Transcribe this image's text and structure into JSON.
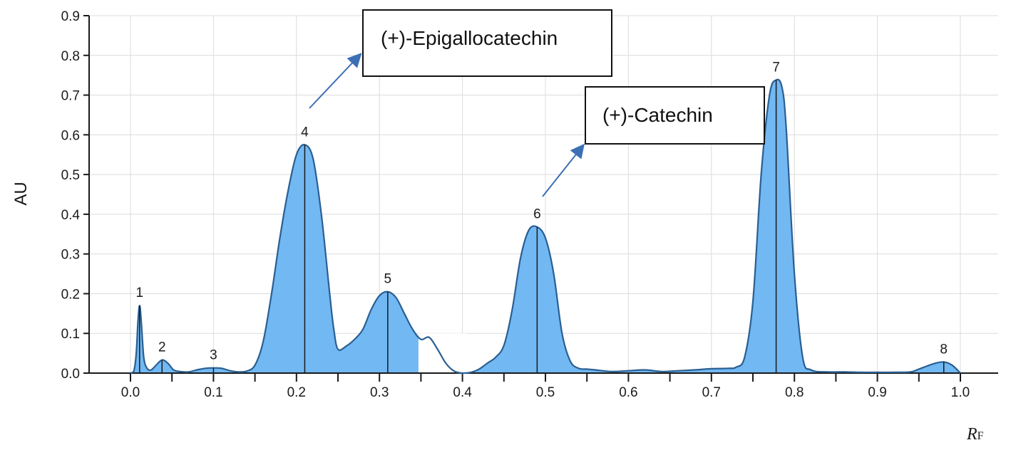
{
  "chart_data": {
    "type": "area",
    "xlabel": "RF",
    "xlabel_main": "R",
    "xlabel_sub": "F",
    "ylabel": "AU",
    "xlim": [
      -0.05,
      1.05
    ],
    "ylim": [
      0,
      0.9
    ],
    "x_ticks": [
      "0.0",
      "0.1",
      "0.2",
      "0.3",
      "0.4",
      "0.5",
      "0.6",
      "0.7",
      "0.8",
      "0.9",
      "1.0"
    ],
    "y_ticks": [
      "0.0",
      "0.1",
      "0.2",
      "0.3",
      "0.4",
      "0.5",
      "0.6",
      "0.7",
      "0.8",
      "0.9"
    ],
    "grid": true,
    "colors": {
      "fill": "#6ab4f2",
      "line": "#2a5f92",
      "arrow": "#3d6fb5"
    },
    "peaks": [
      {
        "label": "1",
        "x": 0.011,
        "y": 0.17
      },
      {
        "label": "2",
        "x": 0.038,
        "y": 0.033
      },
      {
        "label": "3",
        "x": 0.1,
        "y": 0.013
      },
      {
        "label": "4",
        "x": 0.21,
        "y": 0.575
      },
      {
        "label": "5",
        "x": 0.31,
        "y": 0.205
      },
      {
        "label": "6",
        "x": 0.49,
        "y": 0.368
      },
      {
        "label": "7",
        "x": 0.778,
        "y": 0.738
      },
      {
        "label": "8",
        "x": 0.98,
        "y": 0.028
      }
    ],
    "annotations": [
      {
        "text": "(+)-Epigallocatechin",
        "peak": "4"
      },
      {
        "text": "(+)-Catechin",
        "peak": "6"
      }
    ],
    "curve": [
      [
        0.0,
        0.0
      ],
      [
        0.004,
        0.005
      ],
      [
        0.007,
        0.05
      ],
      [
        0.009,
        0.13
      ],
      [
        0.011,
        0.17
      ],
      [
        0.013,
        0.13
      ],
      [
        0.016,
        0.04
      ],
      [
        0.02,
        0.012
      ],
      [
        0.025,
        0.008
      ],
      [
        0.03,
        0.018
      ],
      [
        0.038,
        0.033
      ],
      [
        0.045,
        0.025
      ],
      [
        0.052,
        0.008
      ],
      [
        0.06,
        0.004
      ],
      [
        0.07,
        0.003
      ],
      [
        0.08,
        0.008
      ],
      [
        0.09,
        0.012
      ],
      [
        0.1,
        0.013
      ],
      [
        0.11,
        0.012
      ],
      [
        0.12,
        0.006
      ],
      [
        0.13,
        0.003
      ],
      [
        0.14,
        0.005
      ],
      [
        0.15,
        0.02
      ],
      [
        0.16,
        0.08
      ],
      [
        0.17,
        0.2
      ],
      [
        0.18,
        0.34
      ],
      [
        0.19,
        0.46
      ],
      [
        0.2,
        0.55
      ],
      [
        0.21,
        0.575
      ],
      [
        0.22,
        0.54
      ],
      [
        0.23,
        0.4
      ],
      [
        0.24,
        0.2
      ],
      [
        0.245,
        0.11
      ],
      [
        0.25,
        0.06
      ],
      [
        0.26,
        0.068
      ],
      [
        0.27,
        0.085
      ],
      [
        0.28,
        0.11
      ],
      [
        0.29,
        0.16
      ],
      [
        0.3,
        0.195
      ],
      [
        0.31,
        0.205
      ],
      [
        0.32,
        0.19
      ],
      [
        0.33,
        0.15
      ],
      [
        0.34,
        0.11
      ],
      [
        0.35,
        0.085
      ],
      [
        0.36,
        0.09
      ],
      [
        0.37,
        0.06
      ],
      [
        0.38,
        0.025
      ],
      [
        0.39,
        0.005
      ],
      [
        0.4,
        0.0
      ],
      [
        0.41,
        0.002
      ],
      [
        0.42,
        0.01
      ],
      [
        0.43,
        0.025
      ],
      [
        0.44,
        0.04
      ],
      [
        0.45,
        0.07
      ],
      [
        0.46,
        0.16
      ],
      [
        0.47,
        0.29
      ],
      [
        0.48,
        0.36
      ],
      [
        0.49,
        0.368
      ],
      [
        0.5,
        0.34
      ],
      [
        0.51,
        0.25
      ],
      [
        0.52,
        0.1
      ],
      [
        0.53,
        0.03
      ],
      [
        0.54,
        0.012
      ],
      [
        0.55,
        0.01
      ],
      [
        0.56,
        0.008
      ],
      [
        0.58,
        0.004
      ],
      [
        0.6,
        0.006
      ],
      [
        0.62,
        0.008
      ],
      [
        0.64,
        0.004
      ],
      [
        0.66,
        0.006
      ],
      [
        0.68,
        0.008
      ],
      [
        0.7,
        0.011
      ],
      [
        0.72,
        0.012
      ],
      [
        0.73,
        0.015
      ],
      [
        0.74,
        0.04
      ],
      [
        0.75,
        0.18
      ],
      [
        0.76,
        0.5
      ],
      [
        0.77,
        0.7
      ],
      [
        0.778,
        0.738
      ],
      [
        0.785,
        0.72
      ],
      [
        0.79,
        0.62
      ],
      [
        0.8,
        0.25
      ],
      [
        0.81,
        0.04
      ],
      [
        0.82,
        0.008
      ],
      [
        0.84,
        0.003
      ],
      [
        0.86,
        0.003
      ],
      [
        0.88,
        0.002
      ],
      [
        0.9,
        0.002
      ],
      [
        0.92,
        0.002
      ],
      [
        0.94,
        0.003
      ],
      [
        0.95,
        0.01
      ],
      [
        0.96,
        0.018
      ],
      [
        0.97,
        0.025
      ],
      [
        0.98,
        0.028
      ],
      [
        0.99,
        0.02
      ],
      [
        1.0,
        0.0
      ]
    ]
  }
}
